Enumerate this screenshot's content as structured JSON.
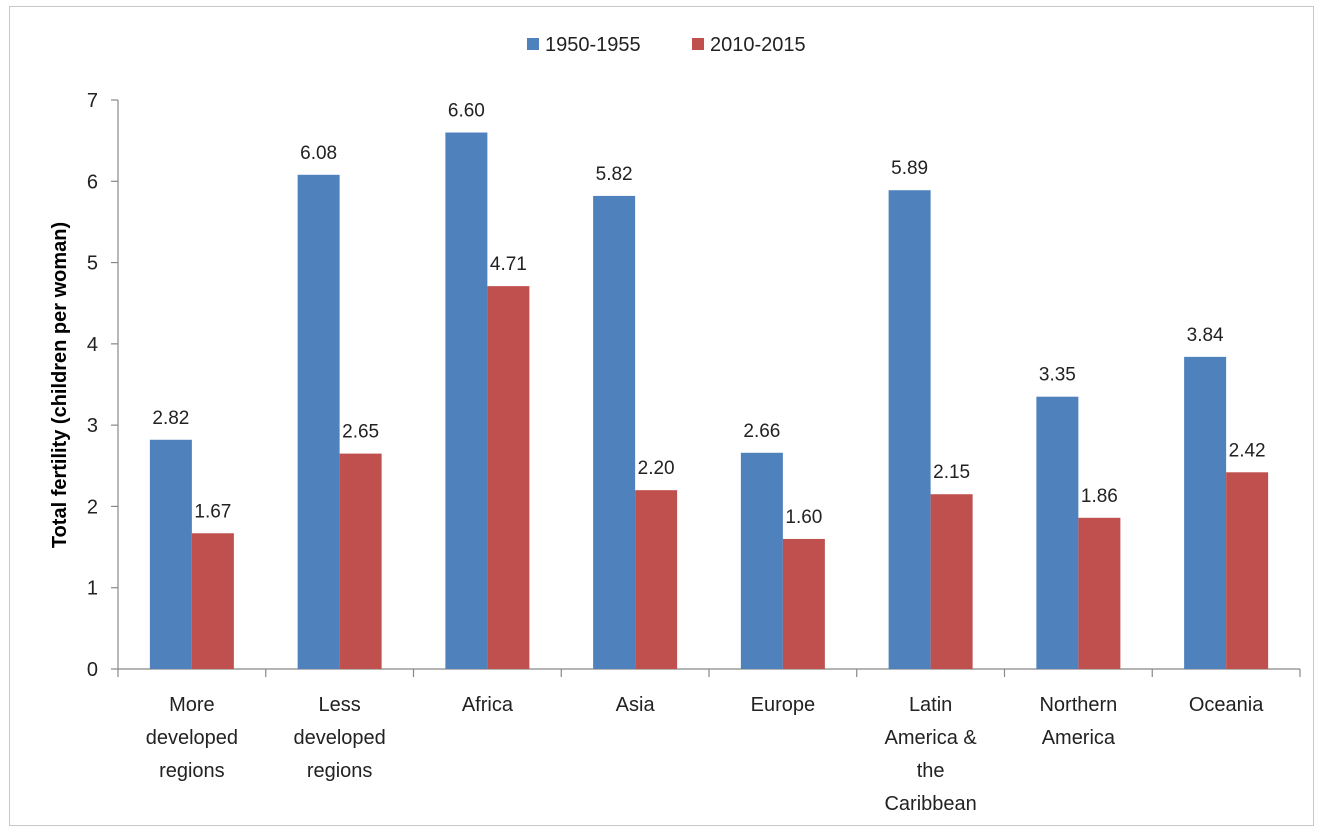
{
  "chart_data": {
    "type": "bar",
    "title": "",
    "xlabel": "",
    "ylabel": "Total fertility (children per woman)",
    "ylim": [
      0,
      7
    ],
    "yticks": [
      0,
      1,
      2,
      3,
      4,
      5,
      6,
      7
    ],
    "grid": false,
    "legend_position": "top-center",
    "categories": [
      [
        "More",
        "developed",
        "regions"
      ],
      [
        "Less",
        "developed",
        "regions"
      ],
      [
        "Africa"
      ],
      [
        "Asia"
      ],
      [
        "Europe"
      ],
      [
        "Latin",
        "America &",
        "the",
        "Caribbean"
      ],
      [
        "Northern",
        "America"
      ],
      [
        "Oceania"
      ]
    ],
    "series": [
      {
        "name": "1950-1955",
        "color": "#4f81bd",
        "values": [
          2.82,
          6.08,
          6.6,
          5.82,
          2.66,
          5.89,
          3.35,
          3.84
        ],
        "labels": [
          "2.82",
          "6.08",
          "6.60",
          "5.82",
          "2.66",
          "5.89",
          "3.35",
          "3.84"
        ]
      },
      {
        "name": "2010-2015",
        "color": "#c0504d",
        "values": [
          1.67,
          2.65,
          4.71,
          2.2,
          1.6,
          2.15,
          1.86,
          2.42
        ],
        "labels": [
          "1.67",
          "2.65",
          "4.71",
          "2.20",
          "1.60",
          "2.15",
          "1.86",
          "2.42"
        ]
      }
    ]
  }
}
